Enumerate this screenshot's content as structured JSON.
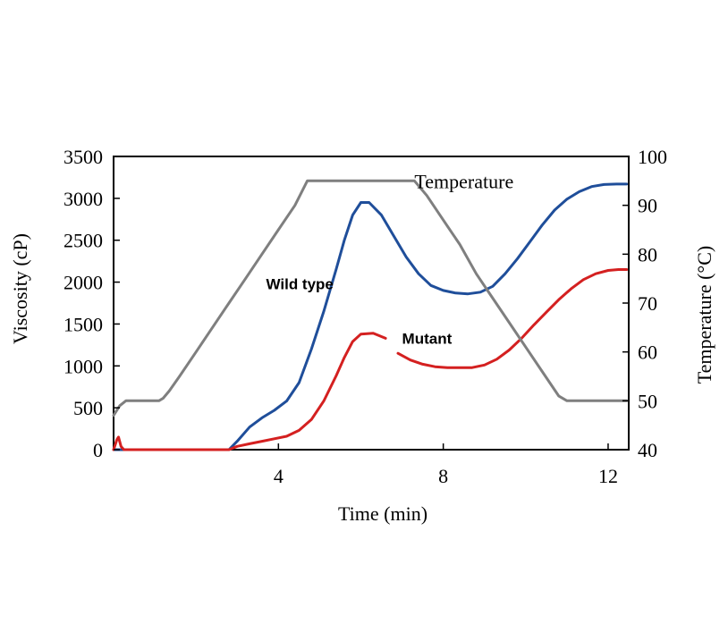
{
  "chart_data": {
    "type": "line",
    "title": "",
    "xlabel": "Time (min)",
    "ylabel_left": "Viscosity (cP)",
    "ylabel_right": "Temperature (°C)",
    "xlim": [
      0,
      12.5
    ],
    "ylim_left": [
      0,
      3500
    ],
    "ylim_right": [
      40,
      100
    ],
    "x_ticks": [
      4,
      8,
      12
    ],
    "y_left_ticks": [
      0,
      500,
      1000,
      1500,
      2000,
      2500,
      3000,
      3500
    ],
    "y_right_ticks": [
      40,
      50,
      60,
      70,
      80,
      90,
      100
    ],
    "grid": false,
    "legend": "none",
    "series": [
      {
        "name": "Wild type",
        "axis": "left",
        "color": "#1f4e9a",
        "label_at": [
          3.7,
          2000
        ],
        "points": [
          [
            0,
            0
          ],
          [
            2.8,
            0
          ],
          [
            3.0,
            100
          ],
          [
            3.3,
            270
          ],
          [
            3.6,
            380
          ],
          [
            3.9,
            470
          ],
          [
            4.2,
            580
          ],
          [
            4.5,
            800
          ],
          [
            4.8,
            1200
          ],
          [
            5.1,
            1650
          ],
          [
            5.4,
            2150
          ],
          [
            5.6,
            2500
          ],
          [
            5.8,
            2800
          ],
          [
            6.0,
            2950
          ],
          [
            6.2,
            2950
          ],
          [
            6.5,
            2800
          ],
          [
            6.8,
            2550
          ],
          [
            7.1,
            2300
          ],
          [
            7.4,
            2100
          ],
          [
            7.7,
            1960
          ],
          [
            8.0,
            1900
          ],
          [
            8.3,
            1870
          ],
          [
            8.6,
            1860
          ],
          [
            8.9,
            1880
          ],
          [
            9.2,
            1950
          ],
          [
            9.5,
            2100
          ],
          [
            9.8,
            2280
          ],
          [
            10.1,
            2480
          ],
          [
            10.4,
            2680
          ],
          [
            10.7,
            2860
          ],
          [
            11.0,
            2990
          ],
          [
            11.3,
            3080
          ],
          [
            11.6,
            3140
          ],
          [
            11.9,
            3165
          ],
          [
            12.2,
            3170
          ],
          [
            12.45,
            3170
          ]
        ]
      },
      {
        "name": "Mutant",
        "axis": "left",
        "color": "#d42020",
        "label_at": [
          7.0,
          1350
        ],
        "points": [
          [
            0,
            0
          ],
          [
            0.08,
            120
          ],
          [
            0.12,
            150
          ],
          [
            0.18,
            40
          ],
          [
            0.25,
            0
          ],
          [
            2.8,
            0
          ],
          [
            3.0,
            40
          ],
          [
            3.3,
            70
          ],
          [
            3.6,
            100
          ],
          [
            3.9,
            130
          ],
          [
            4.2,
            160
          ],
          [
            4.5,
            230
          ],
          [
            4.8,
            360
          ],
          [
            5.1,
            580
          ],
          [
            5.4,
            880
          ],
          [
            5.6,
            1100
          ],
          [
            5.8,
            1290
          ],
          [
            6.0,
            1380
          ],
          [
            6.3,
            1390
          ],
          [
            6.6,
            1330
          ]
        ],
        "points_2": [
          [
            6.9,
            1150
          ],
          [
            7.2,
            1070
          ],
          [
            7.5,
            1020
          ],
          [
            7.8,
            990
          ],
          [
            8.1,
            980
          ],
          [
            8.4,
            980
          ],
          [
            8.7,
            980
          ],
          [
            9.0,
            1010
          ],
          [
            9.3,
            1080
          ],
          [
            9.6,
            1190
          ],
          [
            9.9,
            1330
          ],
          [
            10.2,
            1490
          ],
          [
            10.5,
            1640
          ],
          [
            10.8,
            1790
          ],
          [
            11.1,
            1920
          ],
          [
            11.4,
            2030
          ],
          [
            11.7,
            2100
          ],
          [
            12.0,
            2140
          ],
          [
            12.25,
            2150
          ],
          [
            12.45,
            2150
          ]
        ]
      },
      {
        "name": "Temperature",
        "axis": "right",
        "color": "#7f7f7f",
        "label_at": [
          7.3,
          95
        ],
        "points": [
          [
            0,
            47
          ],
          [
            0.15,
            49
          ],
          [
            0.3,
            50
          ],
          [
            1.1,
            50
          ],
          [
            1.2,
            50.5
          ],
          [
            1.35,
            52
          ],
          [
            1.6,
            55
          ],
          [
            2.0,
            60
          ],
          [
            2.4,
            65
          ],
          [
            2.8,
            70
          ],
          [
            3.2,
            75
          ],
          [
            3.6,
            80
          ],
          [
            4.0,
            85
          ],
          [
            4.4,
            90
          ],
          [
            4.7,
            95
          ],
          [
            4.8,
            95
          ],
          [
            5.0,
            95
          ],
          [
            5.5,
            95
          ],
          [
            6.0,
            95
          ],
          [
            6.5,
            95
          ],
          [
            7.0,
            95
          ],
          [
            7.3,
            95
          ],
          [
            7.6,
            92
          ],
          [
            8.0,
            87
          ],
          [
            8.4,
            82
          ],
          [
            8.8,
            76
          ],
          [
            9.2,
            71
          ],
          [
            9.6,
            66
          ],
          [
            10.0,
            61
          ],
          [
            10.4,
            56
          ],
          [
            10.8,
            51
          ],
          [
            11.0,
            50
          ],
          [
            11.3,
            50
          ],
          [
            12.0,
            50
          ],
          [
            12.45,
            50
          ]
        ]
      }
    ]
  }
}
